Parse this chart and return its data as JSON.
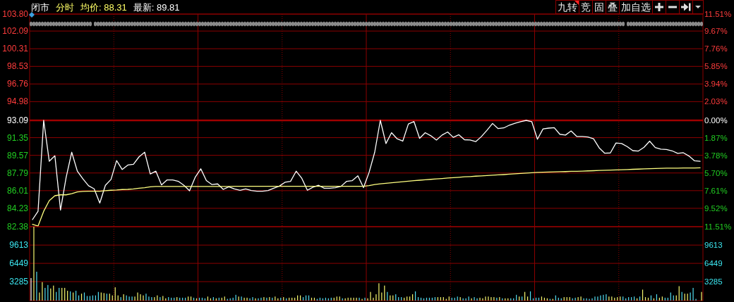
{
  "chart_data": [
    {
      "type": "line",
      "title": "闭市",
      "subtitle": "分时",
      "annotations": [
        "均价: 88.31",
        "最新: 89.81"
      ],
      "categories": [
        null,
        null,
        null,
        null,
        null,
        null,
        null,
        null,
        null,
        null,
        null,
        null,
        null,
        null,
        null,
        null,
        null,
        null,
        null,
        null,
        null,
        null,
        null,
        null,
        null,
        null,
        null,
        null,
        null,
        null,
        null,
        null,
        null,
        null,
        null,
        null,
        null,
        null,
        null,
        null,
        null,
        null,
        null,
        null,
        null,
        null,
        null,
        null,
        null,
        null,
        null,
        null,
        null,
        null,
        null,
        null,
        null,
        null,
        null,
        null,
        null,
        null,
        null,
        null,
        null,
        null,
        null,
        null,
        null,
        null,
        null,
        null,
        null,
        null,
        null,
        null,
        null,
        null,
        null,
        null,
        null,
        null,
        null,
        null,
        null,
        null,
        null,
        null,
        null,
        null,
        null,
        null,
        null,
        null,
        null,
        null,
        null,
        null,
        null,
        null,
        null,
        null,
        null,
        null,
        null,
        null,
        null,
        null,
        null,
        null,
        null,
        null,
        null,
        null,
        null,
        null,
        null,
        null,
        null,
        null
      ],
      "series": [
        {
          "color": "#ffffff",
          "values": [
            83.09,
            83.93,
            93.09,
            88.97,
            89.52,
            84.05,
            87.33,
            89.88,
            87.97,
            87.19,
            86.5,
            86.19,
            84.76,
            86.55,
            87.14,
            89.04,
            88.14,
            88.59,
            88.66,
            89.42,
            89.88,
            87.69,
            87.97,
            86.59,
            87.09,
            87.09,
            86.95,
            86.55,
            86.0,
            87.35,
            88.21,
            87.02,
            86.62,
            86.69,
            86.14,
            86.4,
            86.19,
            86.05,
            86.19,
            86.02,
            85.95,
            85.95,
            86.02,
            86.26,
            86.47,
            86.85,
            86.95,
            87.97,
            87.26,
            86.05,
            86.36,
            86.55,
            86.26,
            86.26,
            86.31,
            86.45,
            86.95,
            87.02,
            87.5,
            86.31,
            87.85,
            89.88,
            93.09,
            90.76,
            91.85,
            91.23,
            91.0,
            92.73,
            92.97,
            91.28,
            91.85,
            91.54,
            91.11,
            91.61,
            91.92,
            91.38,
            91.64,
            91.14,
            91.11,
            90.95,
            91.45,
            92.09,
            92.78,
            92.26,
            92.33,
            92.61,
            92.8,
            92.95,
            93.09,
            92.95,
            91.19,
            92.23,
            92.31,
            92.35,
            91.69,
            91.61,
            92.02,
            91.47,
            91.47,
            91.42,
            91.23,
            90.33,
            89.78,
            89.81,
            90.81,
            90.76,
            90.45,
            90.04,
            90.0,
            90.38,
            91.0,
            90.35,
            90.19,
            90.16,
            90.02,
            89.76,
            89.83,
            89.5,
            89.02,
            88.97
          ]
        },
        {
          "color": "#ffff80",
          "values": [
            82.62,
            82.45,
            83.93,
            85.0,
            85.5,
            85.59,
            85.59,
            85.71,
            85.88,
            85.93,
            85.95,
            85.95,
            85.95,
            86.0,
            86.05,
            86.07,
            86.12,
            86.14,
            86.19,
            86.26,
            86.31,
            86.4,
            86.43,
            86.43,
            86.43,
            86.43,
            86.43,
            86.43,
            86.43,
            86.43,
            86.43,
            86.43,
            86.43,
            86.43,
            86.43,
            86.43,
            86.45,
            86.45,
            86.45,
            86.45,
            86.45,
            86.45,
            86.45,
            86.45,
            86.45,
            86.45,
            86.45,
            86.45,
            86.45,
            86.45,
            86.45,
            86.45,
            86.45,
            86.45,
            86.45,
            86.45,
            86.45,
            86.45,
            86.45,
            86.45,
            86.52,
            86.62,
            86.7,
            86.75,
            86.8,
            86.86,
            86.91,
            86.97,
            87.02,
            87.06,
            87.11,
            87.15,
            87.19,
            87.23,
            87.28,
            87.32,
            87.36,
            87.4,
            87.43,
            87.47,
            87.5,
            87.53,
            87.57,
            87.6,
            87.63,
            87.67,
            87.71,
            87.75,
            87.78,
            87.82,
            87.85,
            87.87,
            87.89,
            87.9,
            87.92,
            87.93,
            87.95,
            87.96,
            87.98,
            88.0,
            88.02,
            88.04,
            88.06,
            88.08,
            88.1,
            88.12,
            88.14,
            88.16,
            88.18,
            88.2,
            88.22,
            88.24,
            88.26,
            88.27,
            88.27,
            88.28,
            88.29,
            88.3,
            88.3,
            88.31
          ]
        }
      ],
      "ylim": [
        82.38,
        103.8
      ],
      "yticks": [
        {
          "value": 103.8,
          "label": "103.80"
        },
        {
          "value": 102.09,
          "label": "102.09"
        },
        {
          "value": 100.31,
          "label": "100.31"
        },
        {
          "value": 98.53,
          "label": "98.53"
        },
        {
          "value": 96.76,
          "label": "96.76"
        },
        {
          "value": 94.98,
          "label": "94.98"
        },
        {
          "value": 93.09,
          "label": "93.09"
        },
        {
          "value": 91.35,
          "label": "91.35"
        },
        {
          "value": 89.57,
          "label": "89.57"
        },
        {
          "value": 87.79,
          "label": "87.79"
        },
        {
          "value": 86.01,
          "label": "86.01"
        },
        {
          "value": 84.23,
          "label": "84.23"
        },
        {
          "value": 82.38,
          "label": "82.38"
        }
      ],
      "y2lim": [
        -11.51,
        11.51
      ],
      "y2ticks": [
        {
          "value": 11.51,
          "label": "11.51%"
        },
        {
          "value": 9.67,
          "label": "9.67%"
        },
        {
          "value": 7.76,
          "label": "7.76%"
        },
        {
          "value": 5.85,
          "label": "5.85%"
        },
        {
          "value": 3.94,
          "label": "3.94%"
        },
        {
          "value": 2.03,
          "label": "2.03%"
        },
        {
          "value": 0,
          "label": "0.00%"
        },
        {
          "value": -1.87,
          "label": "1.87%"
        },
        {
          "value": -3.78,
          "label": "3.78%"
        },
        {
          "value": -5.7,
          "label": "5.70%"
        },
        {
          "value": -7.61,
          "label": "7.61%"
        },
        {
          "value": -9.52,
          "label": "9.52%"
        },
        {
          "value": -11.51,
          "label": "11.51%"
        }
      ],
      "grid": "y",
      "ref_lines": [
        {
          "axis": "y",
          "value": 93.09,
          "color": "#a00000"
        }
      ]
    },
    {
      "type": "bar",
      "categories": [
        null,
        null,
        null,
        null,
        null,
        null,
        null,
        null,
        null,
        null,
        null,
        null,
        null,
        null,
        null,
        null,
        null,
        null,
        null,
        null,
        null,
        null,
        null,
        null,
        null,
        null,
        null,
        null,
        null,
        null,
        null,
        null,
        null,
        null,
        null,
        null,
        null,
        null,
        null,
        null,
        null,
        null,
        null,
        null,
        null,
        null,
        null,
        null,
        null,
        null,
        null,
        null,
        null,
        null,
        null,
        null,
        null,
        null,
        null,
        null,
        null,
        null,
        null,
        null,
        null,
        null,
        null,
        null,
        null,
        null,
        null,
        null,
        null,
        null,
        null,
        null,
        null,
        null,
        null,
        null,
        null,
        null,
        null,
        null,
        null,
        null,
        null,
        null,
        null,
        null,
        null,
        null,
        null,
        null,
        null,
        null,
        null,
        null,
        null,
        null,
        null,
        null,
        null,
        null,
        null,
        null,
        null,
        null,
        null,
        null,
        null,
        null,
        null,
        null,
        null,
        null,
        null,
        null,
        null,
        null,
        null,
        null,
        null,
        null,
        null,
        null,
        null,
        null,
        null,
        null,
        null,
        null,
        null,
        null,
        null,
        null,
        null,
        null,
        null,
        null,
        null,
        null,
        null,
        null,
        null,
        null,
        null,
        null,
        null,
        null,
        null,
        null,
        null,
        null,
        null,
        null,
        null,
        null,
        null,
        null,
        null,
        null,
        null,
        null,
        null,
        null,
        null,
        null,
        null,
        null,
        null,
        null,
        null,
        null,
        null,
        null,
        null,
        null,
        null,
        null,
        null,
        null,
        null,
        null,
        null,
        null,
        null,
        null,
        null,
        null,
        null,
        null,
        null,
        null,
        null,
        null,
        null,
        null,
        null,
        null,
        null,
        null,
        null,
        null,
        null,
        null,
        null,
        null,
        null,
        null,
        null,
        null,
        null,
        null,
        null,
        null,
        null,
        null,
        null,
        null,
        null,
        null,
        null,
        null,
        null,
        null,
        null,
        null,
        null,
        null,
        null,
        null,
        null,
        null,
        null,
        null,
        null,
        null,
        null,
        null
      ],
      "values": [
        3900,
        12800,
        5000,
        1400,
        3200,
        2200,
        2700,
        2100,
        2600,
        1500,
        2200,
        2200,
        2200,
        1700,
        1600,
        1400,
        1700,
        900,
        1200,
        1400,
        800,
        800,
        900,
        900,
        1500,
        1400,
        1300,
        1200,
        1200,
        900,
        2300,
        900,
        600,
        1100,
        900,
        700,
        700,
        700,
        1400,
        1100,
        900,
        1200,
        700,
        600,
        600,
        900,
        600,
        800,
        400,
        600,
        500,
        500,
        600,
        500,
        500,
        500,
        700,
        700,
        500,
        400,
        500,
        500,
        400,
        700,
        400,
        600,
        400,
        500,
        500,
        700,
        300,
        400,
        500,
        1000,
        700,
        700,
        500,
        500,
        400,
        600,
        400,
        400,
        500,
        600,
        500,
        600,
        500,
        700,
        400,
        500,
        600,
        400,
        500,
        500,
        500,
        900,
        900,
        600,
        900,
        900,
        500,
        500,
        300,
        500,
        400,
        500,
        400,
        500,
        500,
        700,
        700,
        400,
        400,
        500,
        500,
        500,
        500,
        500,
        300,
        500,
        400,
        1500,
        500,
        1100,
        3000,
        1400,
        2600,
        1500,
        900,
        900,
        1100,
        600,
        600,
        500,
        700,
        700,
        1100,
        1600,
        600,
        500,
        400,
        500,
        500,
        500,
        600,
        600,
        600,
        600,
        300,
        700,
        500,
        500,
        700,
        600,
        400,
        400,
        700,
        400,
        600,
        400,
        500,
        400,
        700,
        700,
        600,
        600,
        500,
        600,
        400,
        400,
        400,
        400,
        400,
        1000,
        700,
        700,
        1500,
        700,
        1600,
        400,
        500,
        500,
        700,
        500,
        400,
        300,
        300,
        900,
        500,
        400,
        600,
        600,
        600,
        400,
        500,
        600,
        700,
        400,
        400,
        300,
        400,
        700,
        700,
        900,
        1000,
        1100,
        700,
        700,
        500,
        600,
        700,
        700,
        400,
        600,
        600,
        700,
        400,
        700,
        1900,
        600,
        500,
        900,
        400,
        1100,
        500,
        700,
        500,
        500,
        1400,
        900,
        900,
        2500,
        1500,
        1200,
        1200,
        1400,
        2200,
        300,
        null,
        1500
      ],
      "colors": [
        "#ffffff",
        "#f5f56e",
        "#50dcf0",
        "#f5f56e",
        "#f5f56e",
        "#50dcf0",
        "#50dcf0",
        "#f5f56e",
        "#f5f56e",
        "#50dcf0",
        "#50dcf0",
        "#f5f56e",
        "#f5f56e",
        "#f5f56e",
        "#50dcf0",
        "#f5f56e",
        "#50dcf0",
        "#50dcf0",
        "#f5f56e",
        "#50dcf0",
        "#50dcf0",
        "#50dcf0",
        "#50dcf0",
        "#50dcf0",
        "#50dcf0",
        "#f5f56e",
        "#f5f56e",
        "#50dcf0",
        "#f5f56e",
        "#f5f56e",
        "#f5f56e",
        "#f5f56e",
        "#50dcf0",
        "#f5f56e",
        "#50dcf0",
        "#50dcf0",
        "#50dcf0",
        "#f5f56e",
        "#f5f56e",
        "#f5f56e",
        "#f5f56e",
        "#50dcf0",
        "#50dcf0",
        "#50dcf0",
        "#f5f56e",
        "#f5f56e",
        "#50dcf0",
        "#f5f56e",
        "#f5f56e",
        "#50dcf0",
        "#50dcf0",
        "#50dcf0",
        "#f5f56e",
        "#50dcf0",
        "#50dcf0",
        "#50dcf0",
        "#f5f56e",
        "#f5f56e",
        "#50dcf0",
        "#f5f56e",
        "#50dcf0",
        "#50dcf0",
        "#50dcf0",
        "#f5f56e",
        "#f5f56e",
        "#50dcf0",
        "#f5f56e",
        "#50dcf0",
        "#f5f56e",
        "#f5f56e",
        "#50dcf0",
        "#50dcf0",
        "#50dcf0",
        "#50dcf0",
        "#f5f56e",
        "#50dcf0",
        "#f5f56e",
        "#f5f56e",
        "#50dcf0",
        "#50dcf0",
        "#f5f56e",
        "#50dcf0",
        "#50dcf0",
        "#f5f56e",
        "#50dcf0",
        "#f5f56e",
        "#50dcf0",
        "#f5f56e",
        "#f5f56e",
        "#50dcf0",
        "#f5f56e",
        "#50dcf0",
        "#f5f56e",
        "#f5f56e",
        "#f5f56e",
        "#f5f56e",
        "#f5f56e",
        "#50dcf0",
        "#50dcf0",
        "#50dcf0",
        "#f5f56e",
        "#f5f56e",
        "#50dcf0",
        "#50dcf0",
        "#50dcf0",
        "#50dcf0",
        "#50dcf0",
        "#50dcf0",
        "#f5f56e",
        "#f5f56e",
        "#f5f56e",
        "#50dcf0",
        "#f5f56e",
        "#f5f56e",
        "#f5f56e",
        "#f5f56e",
        "#f5f56e",
        "#50dcf0",
        "#f5f56e",
        "#50dcf0",
        "#f5f56e",
        "#f5f56e",
        "#f5f56e",
        "#f5f56e",
        "#f5f56e",
        "#f5f56e",
        "#f5f56e",
        "#50dcf0",
        "#f5f56e",
        "#f5f56e",
        "#50dcf0",
        "#50dcf0",
        "#50dcf0",
        "#f5f56e",
        "#f5f56e",
        "#f5f56e",
        "#f5f56e",
        "#50dcf0",
        "#50dcf0",
        "#50dcf0",
        "#50dcf0",
        "#50dcf0",
        "#50dcf0",
        "#50dcf0",
        "#50dcf0",
        "#f5f56e",
        "#f5f56e",
        "#f5f56e",
        "#f5f56e",
        "#f5f56e",
        "#50dcf0",
        "#50dcf0",
        "#50dcf0",
        "#f5f56e",
        "#50dcf0",
        "#50dcf0",
        "#50dcf0",
        "#f5f56e",
        "#50dcf0",
        "#50dcf0",
        "#f5f56e",
        "#f5f56e",
        "#f5f56e",
        "#f5f56e",
        "#f5f56e",
        "#f5f56e",
        "#50dcf0",
        "#f5f56e",
        "#50dcf0",
        "#f5f56e",
        "#f5f56e",
        "#50dcf0",
        "#50dcf0",
        "#50dcf0",
        "#f5f56e",
        "#50dcf0",
        "#f5f56e",
        "#f5f56e",
        "#50dcf0",
        "#50dcf0",
        "#50dcf0",
        "#50dcf0",
        "#f5f56e",
        "#f5f56e",
        "#f5f56e",
        "#50dcf0",
        "#f5f56e",
        "#50dcf0",
        "#50dcf0",
        "#50dcf0",
        "#f5f56e",
        "#f5f56e",
        "#f5f56e",
        "#50dcf0",
        "#50dcf0",
        "#f5f56e",
        "#f5f56e",
        "#50dcf0",
        "#50dcf0",
        "#50dcf0",
        "#50dcf0",
        "#50dcf0",
        "#50dcf0",
        "#50dcf0",
        "#50dcf0",
        "#50dcf0",
        "#f5f56e",
        "#f5f56e",
        "#f5f56e",
        "#f5f56e",
        "#f5f56e",
        "#50dcf0",
        "#50dcf0",
        "#50dcf0",
        "#50dcf0",
        "#50dcf0",
        "#f5f56e",
        "#50dcf0",
        "#f5f56e",
        "#f5f56e",
        "#f5f56e",
        "#50dcf0",
        "#f5f56e",
        "#50dcf0",
        "#f5f56e",
        "#f5f56e",
        "#50dcf0",
        "#50dcf0",
        "#50dcf0",
        "#50dcf0",
        "#f5f56e",
        "#f5f56e",
        "#50dcf0",
        "#f5f56e",
        "#f5f56e",
        "#50dcf0",
        "#50dcf0",
        "#50dcf0",
        null,
        "#f5f56e"
      ],
      "ylim": [
        0,
        12800
      ],
      "yticks": [
        3285,
        6449,
        9613
      ],
      "y2lim": [
        0,
        12800
      ],
      "y2ticks": [
        3285,
        6449,
        9613
      ],
      "grid": "y"
    },
    {
      "type": "other",
      "annotations": [
        "九转",
        "竞",
        "固",
        "叠",
        "加自选"
      ]
    }
  ]
}
